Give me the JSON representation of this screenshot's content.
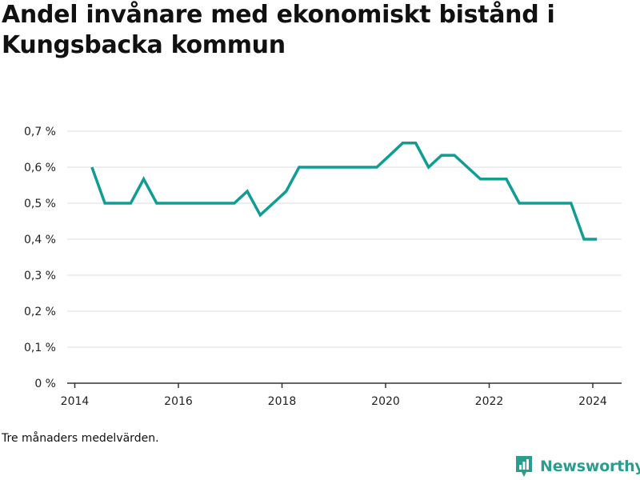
{
  "title": "Andel invånare med ekonomiskt bistånd i Kungsbacka kommun",
  "note": "Tre månaders medelvärden.",
  "brand": {
    "name": "Newsworthy",
    "color": "#2a9d8f",
    "icon": "newsworthy-logo-icon"
  },
  "chart_data": {
    "type": "line",
    "title": "Andel invånare med ekonomiskt bistånd i Kungsbacka kommun",
    "xlabel": "",
    "ylabel": "",
    "xlim": [
      2014,
      2024.6
    ],
    "ylim": [
      0,
      0.7
    ],
    "x_ticks": [
      2014,
      2016,
      2018,
      2020,
      2022,
      2024
    ],
    "x_tick_labels": [
      "2014",
      "2016",
      "2018",
      "2020",
      "2022",
      "2024"
    ],
    "y_ticks": [
      0,
      0.1,
      0.2,
      0.3,
      0.4,
      0.5,
      0.6,
      0.7
    ],
    "y_tick_labels": [
      "0 %",
      "0,1 %",
      "0,2 %",
      "0,3 %",
      "0,4 %",
      "0,5 %",
      "0,6 %",
      "0,7 %"
    ],
    "grid": true,
    "color": "#0f9d94",
    "series": [
      {
        "x": [
          2014.33,
          2014.58,
          2014.83,
          2015.08,
          2015.33,
          2015.58,
          2015.83,
          2016.08,
          2016.33,
          2016.58,
          2016.83,
          2017.08,
          2017.33,
          2017.58,
          2017.83,
          2018.08,
          2018.33,
          2018.58,
          2018.83,
          2019.08,
          2019.33,
          2019.58,
          2019.83,
          2020.08,
          2020.33,
          2020.58,
          2020.83,
          2021.08,
          2021.33,
          2021.58,
          2021.83,
          2022.08,
          2022.33,
          2022.58,
          2022.83,
          2023.08,
          2023.33,
          2023.58,
          2023.83,
          2024.08
        ],
        "y": [
          0.6,
          0.5,
          0.5,
          0.5,
          0.567,
          0.5,
          0.5,
          0.5,
          0.5,
          0.5,
          0.5,
          0.5,
          0.533,
          0.467,
          0.5,
          0.533,
          0.6,
          0.6,
          0.6,
          0.6,
          0.6,
          0.6,
          0.6,
          0.633,
          0.667,
          0.667,
          0.6,
          0.633,
          0.633,
          0.6,
          0.567,
          0.567,
          0.567,
          0.5,
          0.5,
          0.5,
          0.5,
          0.5,
          0.4,
          0.4
        ]
      }
    ]
  }
}
